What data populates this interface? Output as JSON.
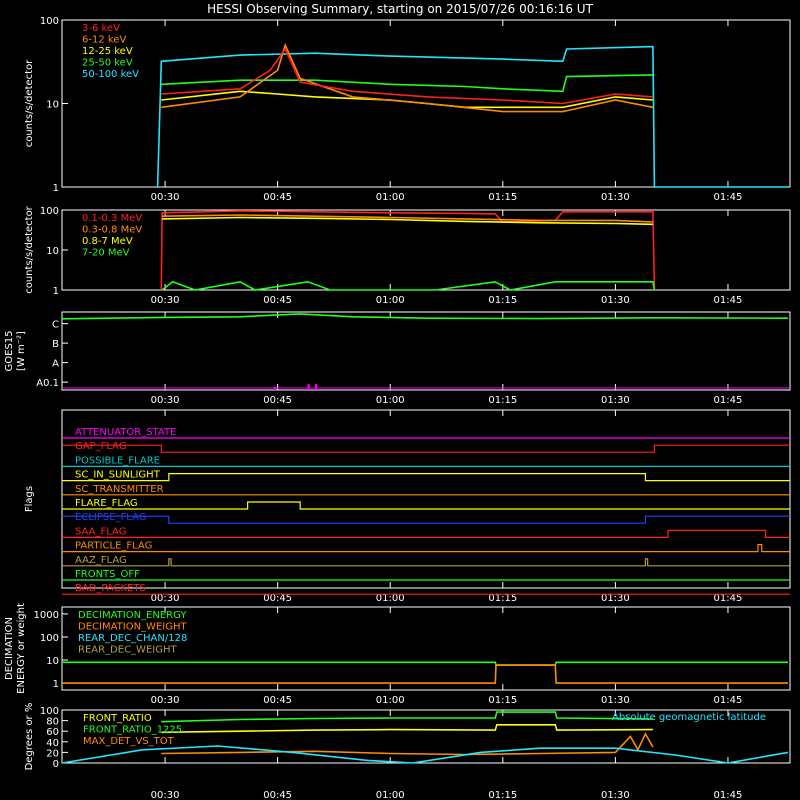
{
  "title": "HESSI Observing Summary, starting on 2015/07/26 00:16:16 UT",
  "time_ticks": [
    "00:30",
    "00:45",
    "01:00",
    "01:15",
    "01:30",
    "01:45"
  ],
  "colors": {
    "red": "#ff2020",
    "orange": "#ff8c00",
    "yellow": "#ffff00",
    "green": "#20ff20",
    "cyan": "#20e6ff",
    "magenta": "#ff00ff",
    "blue": "#2040ff",
    "olive": "#b0a040",
    "teal": "#00c8c8",
    "white": "#ffffff"
  },
  "chart_data": [
    {
      "type": "line",
      "name": "lowenergy",
      "ylabel": "counts/s/detector",
      "yscale": "log",
      "ylim": [
        1,
        100
      ],
      "y_ticks": [
        "1",
        "10",
        "100"
      ],
      "legend": [
        "3-6 keV",
        "6-12 keV",
        "12-25 keV",
        "25-50 keV",
        "50-100 keV"
      ],
      "series": [
        {
          "name": "50-100 keV",
          "color_key": "cyan",
          "points": [
            [
              "00:29",
              1
            ],
            [
              "00:29.5",
              32
            ],
            [
              "00:40",
              38
            ],
            [
              "00:50",
              40
            ],
            [
              "01:00",
              37
            ],
            [
              "01:10",
              35
            ],
            [
              "01:15",
              34
            ],
            [
              "01:23",
              32
            ],
            [
              "01:23.5",
              45
            ],
            [
              "01:35",
              48
            ],
            [
              "01:35.2",
              1
            ],
            [
              "01:53",
              1
            ]
          ]
        },
        {
          "name": "25-50 keV",
          "color_key": "green",
          "points": [
            [
              "00:29.5",
              17
            ],
            [
              "00:40",
              19
            ],
            [
              "00:50",
              19
            ],
            [
              "01:00",
              17
            ],
            [
              "01:10",
              16
            ],
            [
              "01:15",
              15
            ],
            [
              "01:23",
              14
            ],
            [
              "01:23.5",
              21
            ],
            [
              "01:35",
              22
            ]
          ]
        },
        {
          "name": "12-25 keV",
          "color_key": "yellow",
          "points": [
            [
              "00:29.5",
              11
            ],
            [
              "00:40",
              14
            ],
            [
              "00:45",
              13
            ],
            [
              "00:50",
              12
            ],
            [
              "01:00",
              11
            ],
            [
              "01:10",
              9
            ],
            [
              "01:15",
              9
            ],
            [
              "01:23",
              9
            ],
            [
              "01:30",
              12
            ],
            [
              "01:35",
              11
            ]
          ]
        },
        {
          "name": "6-12 keV",
          "color_key": "orange",
          "points": [
            [
              "00:29.5",
              9
            ],
            [
              "00:40",
              12
            ],
            [
              "00:45",
              25
            ],
            [
              "00:46",
              50
            ],
            [
              "00:48",
              20
            ],
            [
              "00:55",
              12
            ],
            [
              "01:05",
              10
            ],
            [
              "01:15",
              8
            ],
            [
              "01:23",
              8
            ],
            [
              "01:30",
              11
            ],
            [
              "01:35",
              9
            ]
          ]
        },
        {
          "name": "3-6 keV",
          "color_key": "red",
          "points": [
            [
              "00:29.5",
              13
            ],
            [
              "00:40",
              15
            ],
            [
              "00:44",
              25
            ],
            [
              "00:46",
              45
            ],
            [
              "00:48",
              18
            ],
            [
              "00:55",
              14
            ],
            [
              "01:05",
              12
            ],
            [
              "01:15",
              11
            ],
            [
              "01:23",
              10
            ],
            [
              "01:30",
              13
            ],
            [
              "01:35",
              12
            ]
          ]
        }
      ]
    },
    {
      "type": "line",
      "name": "highenergy",
      "ylabel": "counts/s/detector",
      "yscale": "log",
      "ylim": [
        1,
        100
      ],
      "y_ticks": [
        "1",
        "10",
        "100"
      ],
      "legend": [
        "0.1-0.3 MeV",
        "0.3-0.8 MeV",
        "0.8-7 MeV",
        "7-20 MeV"
      ],
      "series": [
        {
          "name": "0.1-0.3 MeV",
          "color_key": "red",
          "points": [
            [
              "00:29.5",
              1
            ],
            [
              "00:29.6",
              85
            ],
            [
              "00:40",
              95
            ],
            [
              "00:50",
              90
            ],
            [
              "01:00",
              85
            ],
            [
              "01:10",
              82
            ],
            [
              "01:14",
              80
            ],
            [
              "01:15",
              50
            ],
            [
              "01:22",
              55
            ],
            [
              "01:23",
              90
            ],
            [
              "01:35",
              90
            ],
            [
              "01:35.2",
              1
            ]
          ]
        },
        {
          "name": "0.3-0.8 MeV",
          "color_key": "orange",
          "points": [
            [
              "00:29.6",
              70
            ],
            [
              "00:40",
              75
            ],
            [
              "00:50",
              70
            ],
            [
              "01:00",
              65
            ],
            [
              "01:10",
              60
            ],
            [
              "01:20",
              55
            ],
            [
              "01:30",
              55
            ],
            [
              "01:35",
              50
            ]
          ]
        },
        {
          "name": "0.8-7 MeV",
          "color_key": "yellow",
          "points": [
            [
              "00:29.6",
              60
            ],
            [
              "00:40",
              65
            ],
            [
              "00:50",
              62
            ],
            [
              "01:00",
              58
            ],
            [
              "01:10",
              52
            ],
            [
              "01:20",
              48
            ],
            [
              "01:30",
              46
            ],
            [
              "01:35",
              44
            ]
          ]
        },
        {
          "name": "7-20 MeV",
          "color_key": "green",
          "points": [
            [
              "00:29.6",
              1
            ],
            [
              "00:31",
              1.6
            ],
            [
              "00:34",
              1
            ],
            [
              "00:40",
              1.6
            ],
            [
              "00:42",
              1
            ],
            [
              "00:49",
              1.6
            ],
            [
              "00:52",
              1
            ],
            [
              "01:06",
              1
            ],
            [
              "01:14",
              1.6
            ],
            [
              "01:16",
              1
            ],
            [
              "01:22",
              1.6
            ],
            [
              "01:35",
              1.6
            ],
            [
              "01:35.2",
              1
            ]
          ]
        }
      ]
    },
    {
      "type": "line",
      "name": "goes",
      "ylabel": "GOES15",
      "ylabel2": "[W m⁻²]",
      "ylim": [
        0,
        4
      ],
      "y_ticks": [
        "A0.1",
        "A",
        "B",
        "C"
      ],
      "series": [
        {
          "name": "goes-long",
          "color_key": "green",
          "points": [
            [
              "00:16",
              3.75
            ],
            [
              "00:30",
              3.82
            ],
            [
              "00:40",
              3.85
            ],
            [
              "00:45",
              3.95
            ],
            [
              "00:48",
              4.0
            ],
            [
              "00:55",
              3.85
            ],
            [
              "01:05",
              3.78
            ],
            [
              "01:20",
              3.76
            ],
            [
              "01:35",
              3.8
            ],
            [
              "01:53",
              3.78
            ]
          ]
        }
      ]
    },
    {
      "type": "line",
      "name": "flags",
      "ylabel": "Flags",
      "labels": [
        "ATTENUATOR_STATE",
        "GAP_FLAG",
        "POSSIBLE_FLARE",
        "SC_IN_SUNLIGHT",
        "SC_TRANSMITTER",
        "FLARE_FLAG",
        "ECLIPSE_FLAG",
        "SAA_FLAG",
        "PARTICLE_FLAG",
        "AAZ_FLAG",
        "FRONTS_OFF",
        "BAD_PACKETS"
      ],
      "series": [
        {
          "name": "ATTENUATOR_STATE",
          "color_key": "magenta",
          "steps": []
        },
        {
          "name": "GAP_FLAG",
          "color_key": "red",
          "steps": [
            [
              "00:16",
              1
            ],
            [
              "00:29.5",
              0
            ],
            [
              "01:35.2",
              1
            ]
          ]
        },
        {
          "name": "POSSIBLE_FLARE",
          "color_key": "teal",
          "steps": []
        },
        {
          "name": "SC_IN_SUNLIGHT",
          "color_key": "yellow",
          "steps": [
            [
              "00:16",
              0
            ],
            [
              "00:30.5",
              1
            ],
            [
              "01:34",
              0
            ]
          ]
        },
        {
          "name": "SC_TRANSMITTER",
          "color_key": "orange",
          "steps": []
        },
        {
          "name": "FLARE_FLAG",
          "color_key": "yellow",
          "steps": [
            [
              "00:16",
              0
            ],
            [
              "00:41",
              1
            ],
            [
              "00:48",
              0
            ]
          ]
        },
        {
          "name": "ECLIPSE_FLAG",
          "color_key": "blue",
          "steps": [
            [
              "00:16",
              1
            ],
            [
              "00:30.5",
              0
            ],
            [
              "01:34",
              1
            ]
          ]
        },
        {
          "name": "SAA_FLAG",
          "color_key": "red",
          "steps": [
            [
              "00:16",
              0
            ],
            [
              "01:37",
              1
            ],
            [
              "01:50",
              0
            ]
          ]
        },
        {
          "name": "PARTICLE_FLAG",
          "color_key": "orange",
          "steps": [
            [
              "00:16",
              0
            ],
            [
              "01:49",
              1
            ],
            [
              "01:49.5",
              0
            ]
          ]
        },
        {
          "name": "AAZ_FLAG",
          "color_key": "olive",
          "steps": [
            [
              "00:16",
              0
            ],
            [
              "00:30.5",
              1
            ],
            [
              "00:30.8",
              0
            ],
            [
              "01:34",
              1
            ],
            [
              "01:34.3",
              0
            ]
          ]
        },
        {
          "name": "FRONTS_OFF",
          "color_key": "green",
          "steps": []
        },
        {
          "name": "BAD_PACKETS",
          "color_key": "red",
          "steps": []
        }
      ]
    },
    {
      "type": "line",
      "name": "decimation",
      "ylabel": "DECIMATION",
      "ylabel2": "ENERGY or weight",
      "yscale": "log",
      "ylim": [
        0.5,
        2000
      ],
      "y_ticks": [
        "1",
        "10",
        "100",
        "1000"
      ],
      "legend": [
        "DECIMATION_ENERGY",
        "DECIMATION_WEIGHT",
        "REAR_DEC_CHAN/128",
        "REAR_DEC_WEIGHT"
      ],
      "series": [
        {
          "name": "DECIMATION_ENERGY",
          "color_key": "green",
          "points": [
            [
              "00:16",
              8
            ],
            [
              "01:14",
              8
            ],
            [
              "01:14.1",
              6
            ],
            [
              "01:22",
              6
            ],
            [
              "01:22.1",
              8
            ],
            [
              "01:53",
              8
            ]
          ]
        },
        {
          "name": "DECIMATION_WEIGHT",
          "color_key": "orange",
          "points": [
            [
              "00:16",
              1
            ],
            [
              "01:14",
              1
            ],
            [
              "01:14.1",
              6
            ],
            [
              "01:22",
              6
            ],
            [
              "01:22.1",
              1
            ],
            [
              "01:53",
              1
            ]
          ]
        },
        {
          "name": "REAR_DEC_CHAN/128",
          "color_key": "cyan",
          "points": []
        },
        {
          "name": "REAR_DEC_WEIGHT",
          "color_key": "olive",
          "points": []
        }
      ]
    },
    {
      "type": "line",
      "name": "ratio",
      "ylabel": "Degrees or %",
      "ylim": [
        0,
        100
      ],
      "y_ticks": [
        "0",
        "20",
        "40",
        "60",
        "80",
        "100"
      ],
      "legend": [
        "FRONT_RATIO",
        "FRONT_RATIO_1225",
        "MAX_DET_VS_TOT"
      ],
      "legend_right": "Absolute geomagnetic latitude",
      "series": [
        {
          "name": "FRONT_RATIO",
          "color_key": "yellow",
          "points": [
            [
              "00:29.5",
              58
            ],
            [
              "00:40",
              60
            ],
            [
              "00:50",
              62
            ],
            [
              "01:00",
              63
            ],
            [
              "01:14",
              62
            ],
            [
              "01:14.2",
              72
            ],
            [
              "01:22",
              72
            ],
            [
              "01:22.2",
              62
            ],
            [
              "01:35",
              63
            ]
          ]
        },
        {
          "name": "FRONT_RATIO_1225",
          "color_key": "green",
          "points": [
            [
              "00:29.5",
              78
            ],
            [
              "00:40",
              82
            ],
            [
              "00:50",
              84
            ],
            [
              "01:00",
              85
            ],
            [
              "01:14",
              85
            ],
            [
              "01:14.2",
              96
            ],
            [
              "01:22",
              96
            ],
            [
              "01:22.2",
              85
            ],
            [
              "01:35",
              83
            ]
          ]
        },
        {
          "name": "MAX_DET_VS_TOT",
          "color_key": "orange",
          "points": [
            [
              "00:29.5",
              18
            ],
            [
              "00:40",
              20
            ],
            [
              "00:50",
              22
            ],
            [
              "01:00",
              18
            ],
            [
              "01:10",
              16
            ],
            [
              "01:20",
              18
            ],
            [
              "01:30",
              20
            ],
            [
              "01:32",
              50
            ],
            [
              "01:33",
              25
            ],
            [
              "01:34",
              55
            ],
            [
              "01:35",
              30
            ]
          ]
        },
        {
          "name": "Absolute geomagnetic latitude",
          "color_key": "cyan",
          "points": [
            [
              "00:16",
              0
            ],
            [
              "00:27",
              25
            ],
            [
              "00:37",
              32
            ],
            [
              "00:47",
              20
            ],
            [
              "00:57",
              5
            ],
            [
              "01:03",
              0
            ],
            [
              "01:12",
              20
            ],
            [
              "01:20",
              28
            ],
            [
              "01:30",
              28
            ],
            [
              "01:38",
              15
            ],
            [
              "01:45",
              0
            ],
            [
              "01:53",
              20
            ]
          ]
        }
      ]
    }
  ]
}
